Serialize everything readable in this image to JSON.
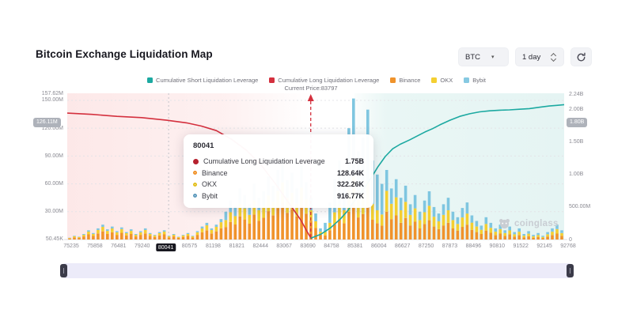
{
  "header": {
    "title": "Bitcoin Exchange Liquidation Map"
  },
  "controls": {
    "symbol": "BTC",
    "interval": "1 day"
  },
  "legend": [
    {
      "label": "Cumulative Short Liquidation Leverage",
      "color": "#1ca9a1"
    },
    {
      "label": "Cumulative Long Liquidation Leverage",
      "color": "#d4303e"
    },
    {
      "label": "Binance",
      "color": "#f0932b"
    },
    {
      "label": "OKX",
      "color": "#f4cf31"
    },
    {
      "label": "Bybit",
      "color": "#86c9e2"
    }
  ],
  "current_price_label": "Current Price:83797",
  "watermark": "coinglass",
  "tooltip": {
    "title": "80041",
    "rows": [
      {
        "label": "Cumulative Long Liquidation Leverage",
        "value": "1.75B",
        "color": "#b5212e",
        "style": "solid"
      },
      {
        "label": "Binance",
        "value": "128.64K",
        "color": "#f0932b",
        "style": "ring"
      },
      {
        "label": "OKX",
        "value": "322.26K",
        "color": "#e3c020",
        "style": "ring"
      },
      {
        "label": "Bybit",
        "value": "916.77K",
        "color": "#5f9bbd",
        "style": "ring"
      }
    ]
  },
  "chart_data": {
    "type": "bar",
    "title": "Bitcoin Exchange Liquidation Map",
    "current_price": 83797,
    "current_price_frac": 0.49,
    "hover_frac": 0.204,
    "zones": {
      "long": [
        0,
        0.49
      ],
      "short": [
        0.578,
        1
      ],
      "long_color": "#f07070",
      "short_color": "#26a69a"
    },
    "left_axis": {
      "unit": "M",
      "max": 157.62,
      "ticks": [
        {
          "label": "157.62M",
          "value": 157.62
        },
        {
          "label": "150.00M",
          "value": 150
        },
        {
          "label": "120.00M",
          "value": 120
        },
        {
          "label": "90.00M",
          "value": 90
        },
        {
          "label": "60.00M",
          "value": 60
        },
        {
          "label": "30.00M",
          "value": 30
        },
        {
          "label": "50.45K",
          "value": 0.05
        }
      ],
      "grid_values": [
        150,
        120,
        90,
        60,
        30
      ],
      "badge": {
        "label": "126.11M",
        "value": 126.11
      }
    },
    "right_axis": {
      "unit": "B",
      "max": 2.256,
      "ticks": [
        {
          "label": "2.24B",
          "value": 2.24
        },
        {
          "label": "2.00B",
          "value": 2.0
        },
        {
          "label": "1.50B",
          "value": 1.5
        },
        {
          "label": "1.00B",
          "value": 1.0
        },
        {
          "label": "500.00M",
          "value": 0.5
        },
        {
          "label": "0",
          "value": 0
        }
      ],
      "badge": {
        "label": "1.80B",
        "value": 1.8
      }
    },
    "x_labels": [
      "75235",
      "75858",
      "76481",
      "79240",
      "80041",
      "80575",
      "81198",
      "81821",
      "82444",
      "83067",
      "83690",
      "84758",
      "85381",
      "86004",
      "86627",
      "87250",
      "87873",
      "88496",
      "90810",
      "91522",
      "92145",
      "92768"
    ],
    "highlighted_x_label": "80041",
    "series_bars": {
      "names": [
        "Binance",
        "OKX",
        "Bybit"
      ],
      "colors": [
        "#f0932b",
        "#f4cf31",
        "#7fc6e0"
      ],
      "unit": "M",
      "stacks": [
        [
          1.1,
          0.6,
          0.3
        ],
        [
          2.2,
          1.2,
          0.6
        ],
        [
          1.7,
          0.9,
          0.4
        ],
        [
          3.3,
          1.8,
          0.9
        ],
        [
          5.5,
          3,
          1.5
        ],
        [
          3.9,
          2.1,
          1
        ],
        [
          6.6,
          3.6,
          1.8
        ],
        [
          8.8,
          4.8,
          2.4
        ],
        [
          6,
          3.3,
          1.7
        ],
        [
          7.7,
          4.2,
          2.1
        ],
        [
          5,
          2.7,
          1.3
        ],
        [
          7.2,
          3.9,
          1.9
        ],
        [
          4.4,
          2.4,
          1.2
        ],
        [
          6,
          3.3,
          1.7
        ],
        [
          3.3,
          1.8,
          0.9
        ],
        [
          5,
          2.7,
          1.3
        ],
        [
          6.6,
          3.6,
          1.8
        ],
        [
          3.9,
          2.1,
          1
        ],
        [
          2.8,
          1.5,
          0.7
        ],
        [
          4.4,
          2.4,
          1.2
        ],
        [
          5.5,
          3,
          1.5
        ],
        [
          2.2,
          1.2,
          0.6
        ],
        [
          3.3,
          1.8,
          0.9
        ],
        [
          1.7,
          0.9,
          0.4
        ],
        [
          2.8,
          1.5,
          0.7
        ],
        [
          3.9,
          2.1,
          1
        ],
        [
          2.2,
          1.2,
          0.6
        ],
        [
          5,
          2.7,
          1.3
        ],
        [
          7.7,
          4.2,
          2.1
        ],
        [
          9.9,
          5.4,
          2.7
        ],
        [
          6.6,
          3.6,
          1.8
        ],
        [
          8.8,
          4.8,
          2.4
        ],
        [
          12.1,
          6.6,
          3.3
        ],
        [
          13.5,
          7.5,
          9
        ],
        [
          18.9,
          10.5,
          12.6
        ],
        [
          16.2,
          9,
          10.8
        ],
        [
          24.8,
          13.8,
          16.5
        ],
        [
          21.6,
          12,
          14.4
        ],
        [
          17.1,
          9.5,
          11.4
        ],
        [
          27,
          15,
          18
        ],
        [
          20.3,
          11.3,
          13.5
        ],
        [
          23.4,
          13,
          15.6
        ],
        [
          30.6,
          17,
          20.4
        ],
        [
          26.1,
          14.5,
          17.4
        ],
        [
          33.8,
          18.8,
          22.5
        ],
        [
          39.6,
          22,
          26.4
        ],
        [
          28.8,
          16,
          19.2
        ],
        [
          32.4,
          18,
          21.6
        ],
        [
          24.8,
          13.8,
          16.5
        ],
        [
          36,
          20,
          24
        ],
        [
          27.9,
          15.5,
          18.6
        ],
        [
          20.3,
          11.3,
          13.5
        ],
        [
          12.6,
          7,
          8.4
        ],
        [
          5.4,
          3,
          3.6
        ],
        [
          4.5,
          3.6,
          9.9
        ],
        [
          10,
          8,
          22
        ],
        [
          16.3,
          13,
          35.8
        ],
        [
          21.3,
          17,
          46.8
        ],
        [
          17.5,
          14,
          38.5
        ],
        [
          30,
          24,
          66
        ],
        [
          38,
          30.4,
          83.6
        ],
        [
          23.8,
          19,
          52.3
        ],
        [
          27.5,
          22,
          60.5
        ],
        [
          35,
          28,
          77
        ],
        [
          21.3,
          17,
          46.8
        ],
        [
          17.5,
          14,
          38.5
        ],
        [
          15,
          12,
          33
        ],
        [
          30,
          22.5,
          22.5
        ],
        [
          22,
          16.5,
          16.5
        ],
        [
          26,
          19.5,
          19.5
        ],
        [
          18,
          13.5,
          13.5
        ],
        [
          23.2,
          17.4,
          17.4
        ],
        [
          15.2,
          11.4,
          11.4
        ],
        [
          19.2,
          14.4,
          14.4
        ],
        [
          12,
          9,
          9
        ],
        [
          16.8,
          12.6,
          12.6
        ],
        [
          20.8,
          15.6,
          15.6
        ],
        [
          14,
          10.5,
          10.5
        ],
        [
          11.2,
          8.4,
          8.4
        ],
        [
          15.2,
          11.4,
          11.4
        ],
        [
          18,
          13.5,
          13.5
        ],
        [
          12,
          9,
          9
        ],
        [
          9.6,
          7.2,
          7.2
        ],
        [
          13.6,
          10.2,
          10.2
        ],
        [
          16,
          12,
          12
        ],
        [
          10.4,
          7.8,
          7.8
        ],
        [
          8,
          6,
          6
        ],
        [
          6,
          4.5,
          4.5
        ],
        [
          9.6,
          7.2,
          7.2
        ],
        [
          7.2,
          5.4,
          5.4
        ],
        [
          4.8,
          3.6,
          3.6
        ],
        [
          6.4,
          4.8,
          4.8
        ],
        [
          4,
          3,
          3
        ],
        [
          5.6,
          4.2,
          4.2
        ],
        [
          3.2,
          2.4,
          2.4
        ],
        [
          4.8,
          3.6,
          3.6
        ],
        [
          2.4,
          1.8,
          1.8
        ],
        [
          3.6,
          2.7,
          2.7
        ],
        [
          2,
          1.5,
          1.5
        ],
        [
          2.8,
          2.1,
          2.1
        ],
        [
          1.6,
          1.2,
          1.2
        ],
        [
          3.2,
          2.4,
          2.4
        ],
        [
          4.8,
          3.6,
          3.6
        ],
        [
          6.4,
          4.8,
          4.8
        ],
        [
          4,
          3,
          3
        ]
      ]
    },
    "series_lines": [
      {
        "name": "Cumulative Long Liquidation Leverage",
        "color": "#d4303e",
        "unit": "B",
        "points": [
          [
            0,
            1.95
          ],
          [
            0.05,
            1.93
          ],
          [
            0.1,
            1.9
          ],
          [
            0.15,
            1.88
          ],
          [
            0.2,
            1.84
          ],
          [
            0.24,
            1.8
          ],
          [
            0.27,
            1.75
          ],
          [
            0.3,
            1.68
          ],
          [
            0.33,
            1.55
          ],
          [
            0.36,
            1.38
          ],
          [
            0.39,
            1.15
          ],
          [
            0.42,
            0.85
          ],
          [
            0.45,
            0.52
          ],
          [
            0.47,
            0.3
          ],
          [
            0.48,
            0.16
          ],
          [
            0.488,
            0.05
          ],
          [
            0.492,
            0.01
          ]
        ]
      },
      {
        "name": "Cumulative Short Liquidation Leverage",
        "color": "#1ca9a1",
        "unit": "B",
        "points": [
          [
            0.49,
            0.02
          ],
          [
            0.51,
            0.08
          ],
          [
            0.53,
            0.18
          ],
          [
            0.55,
            0.32
          ],
          [
            0.565,
            0.45
          ],
          [
            0.578,
            0.6
          ],
          [
            0.59,
            0.72
          ],
          [
            0.6,
            0.82
          ],
          [
            0.613,
            0.97
          ],
          [
            0.625,
            1.12
          ],
          [
            0.64,
            1.28
          ],
          [
            0.655,
            1.4
          ],
          [
            0.67,
            1.47
          ],
          [
            0.69,
            1.54
          ],
          [
            0.705,
            1.6
          ],
          [
            0.72,
            1.66
          ],
          [
            0.735,
            1.71
          ],
          [
            0.75,
            1.77
          ],
          [
            0.77,
            1.84
          ],
          [
            0.79,
            1.9
          ],
          [
            0.81,
            1.94
          ],
          [
            0.83,
            1.97
          ],
          [
            0.85,
            1.985
          ],
          [
            0.87,
            1.995
          ],
          [
            0.89,
            2.0
          ],
          [
            0.91,
            2.01
          ],
          [
            0.93,
            2.02
          ],
          [
            0.95,
            2.04
          ],
          [
            0.97,
            2.06
          ],
          [
            0.985,
            2.07
          ],
          [
            1.0,
            2.08
          ]
        ]
      }
    ]
  }
}
